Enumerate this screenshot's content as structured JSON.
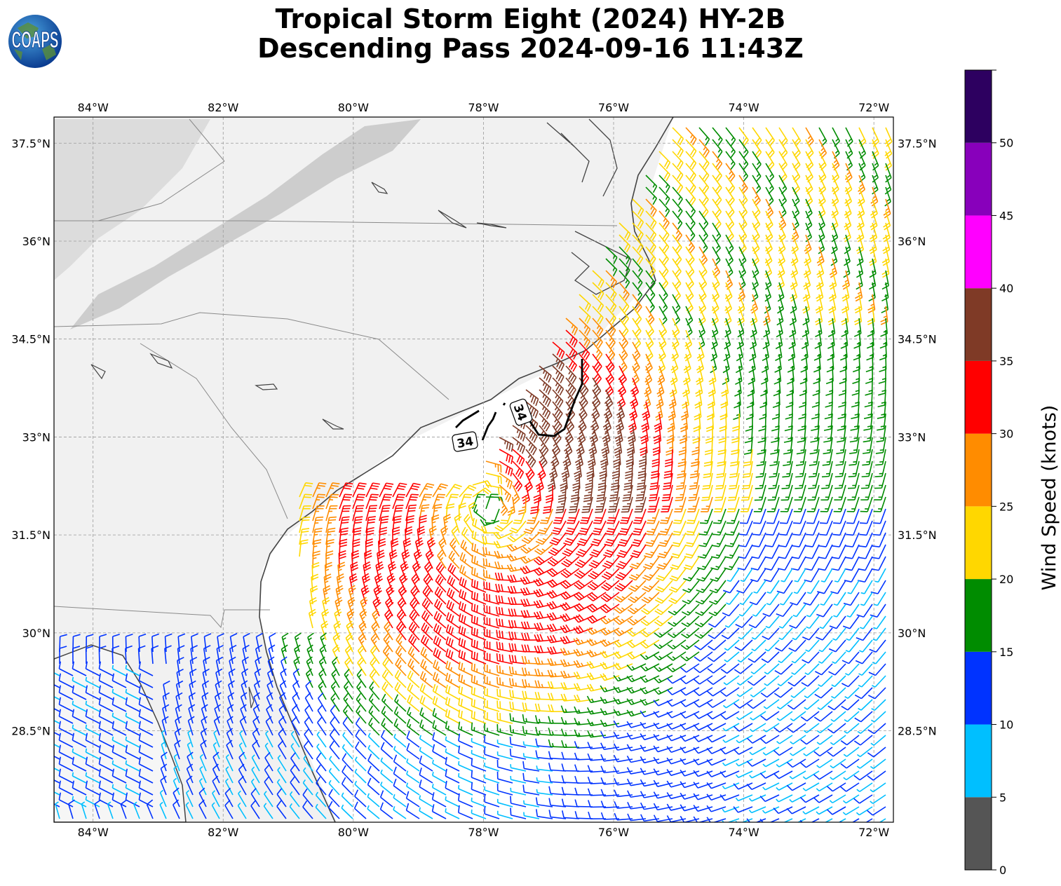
{
  "title": {
    "line1": "Tropical Storm Eight (2024) HY-2B",
    "line2": "Descending Pass 2024-09-16 11:43Z"
  },
  "logo": {
    "text": "COAPS",
    "icon": "globe-logo-icon"
  },
  "map": {
    "lon_range": [
      -84.6,
      -71.7
    ],
    "lat_range": [
      27.1,
      37.9
    ],
    "lon_ticks": [
      "84°W",
      "82°W",
      "80°W",
      "78°W",
      "76°W",
      "74°W",
      "72°W"
    ],
    "lon_values": [
      -84,
      -82,
      -80,
      -78,
      -76,
      -74,
      -72
    ],
    "lat_ticks": [
      "28.5°N",
      "30°N",
      "31.5°N",
      "33°N",
      "34.5°N",
      "36°N",
      "37.5°N"
    ],
    "lat_values": [
      28.5,
      30,
      31.5,
      33,
      34.5,
      36,
      37.5
    ],
    "grid": true,
    "contour_label": "34",
    "storm_center": [
      -77.9,
      31.9
    ]
  },
  "colorbar": {
    "label": "Wind Speed (knots)",
    "ticks": [
      "0",
      "5",
      "10",
      "15",
      "20",
      "25",
      "30",
      "35",
      "40",
      "45",
      "50"
    ],
    "bounds": [
      0,
      5,
      10,
      15,
      20,
      25,
      30,
      35,
      40,
      45,
      50,
      55
    ],
    "colors": [
      "#555555",
      "#00bfff",
      "#0033ff",
      "#008c00",
      "#ffd700",
      "#ff8c00",
      "#ff0000",
      "#7f3a26",
      "#ff00ff",
      "#8800bb",
      "#2d0060"
    ]
  }
}
